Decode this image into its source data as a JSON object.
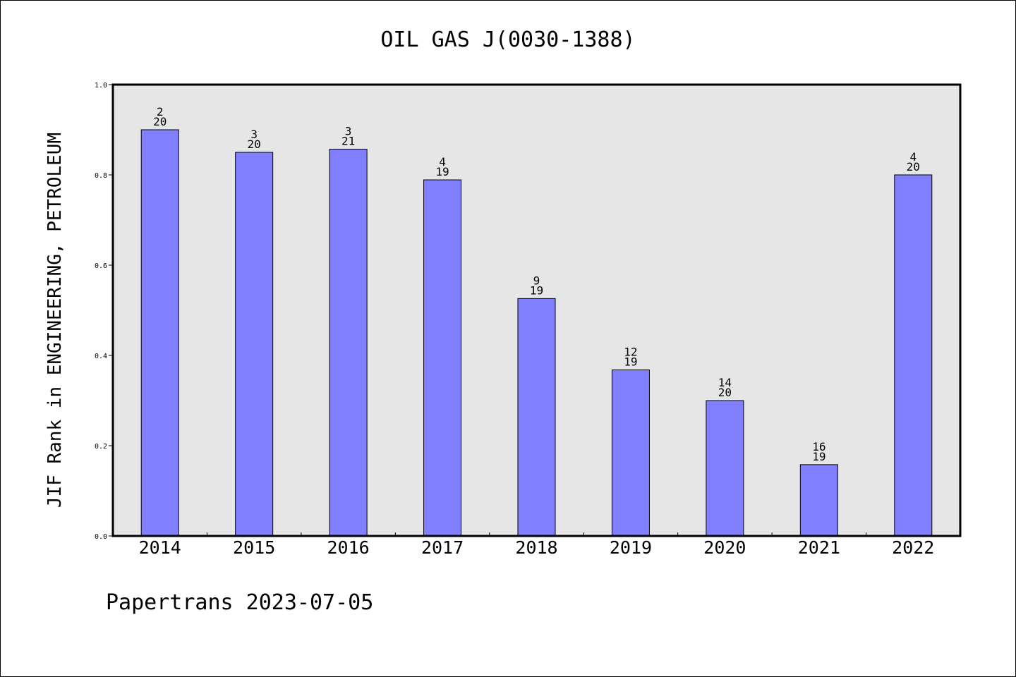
{
  "chart_data": {
    "type": "bar",
    "title": "OIL GAS J(0030-1388)",
    "xlabel": "",
    "ylabel": "JIF Rank in ENGINEERING, PETROLEUM",
    "ylim": [
      0.0,
      1.0
    ],
    "yticks": [
      "0.0",
      "0.2",
      "0.4",
      "0.6",
      "0.8",
      "1.0"
    ],
    "grid": false,
    "categories": [
      "2014",
      "2015",
      "2016",
      "2017",
      "2018",
      "2019",
      "2020",
      "2021",
      "2022"
    ],
    "values": [
      0.9,
      0.85,
      0.857,
      0.789,
      0.526,
      0.368,
      0.3,
      0.158,
      0.8
    ],
    "rank_labels": [
      {
        "rank": "2",
        "total": "20"
      },
      {
        "rank": "3",
        "total": "20"
      },
      {
        "rank": "3",
        "total": "21"
      },
      {
        "rank": "4",
        "total": "19"
      },
      {
        "rank": "9",
        "total": "19"
      },
      {
        "rank": "12",
        "total": "19"
      },
      {
        "rank": "14",
        "total": "20"
      },
      {
        "rank": "16",
        "total": "19"
      },
      {
        "rank": "4",
        "total": "20"
      }
    ],
    "colors": {
      "bar_fill": "#8080ff",
      "bar_stroke": "#000000",
      "plot_background": "#e6e6e6"
    }
  },
  "footer": {
    "text": "Papertrans 2023-07-05"
  }
}
